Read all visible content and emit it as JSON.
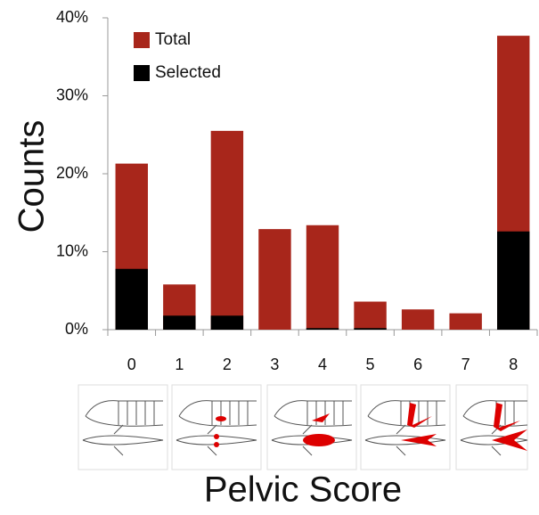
{
  "chart_data": {
    "type": "bar",
    "x_label": "Pelvic Score",
    "y_label": "Counts",
    "categories": [
      "0",
      "1",
      "2",
      "3",
      "4",
      "5",
      "6",
      "7",
      "8"
    ],
    "series": [
      {
        "name": "Total",
        "color": "#a8261b",
        "values": [
          21.3,
          5.8,
          25.5,
          12.9,
          13.4,
          3.6,
          2.6,
          2.1,
          37.7
        ]
      },
      {
        "name": "Selected",
        "color": "#000000",
        "values": [
          7.8,
          1.8,
          1.8,
          0,
          0.2,
          0.2,
          0,
          0,
          12.6
        ]
      }
    ],
    "ylim": [
      0,
      40
    ],
    "yticks": [
      {
        "value": 0,
        "label": "0%"
      },
      {
        "value": 10,
        "label": "10%"
      },
      {
        "value": 20,
        "label": "20%"
      },
      {
        "value": 30,
        "label": "30%"
      },
      {
        "value": 40,
        "label": "40%"
      }
    ],
    "grid": false
  }
}
